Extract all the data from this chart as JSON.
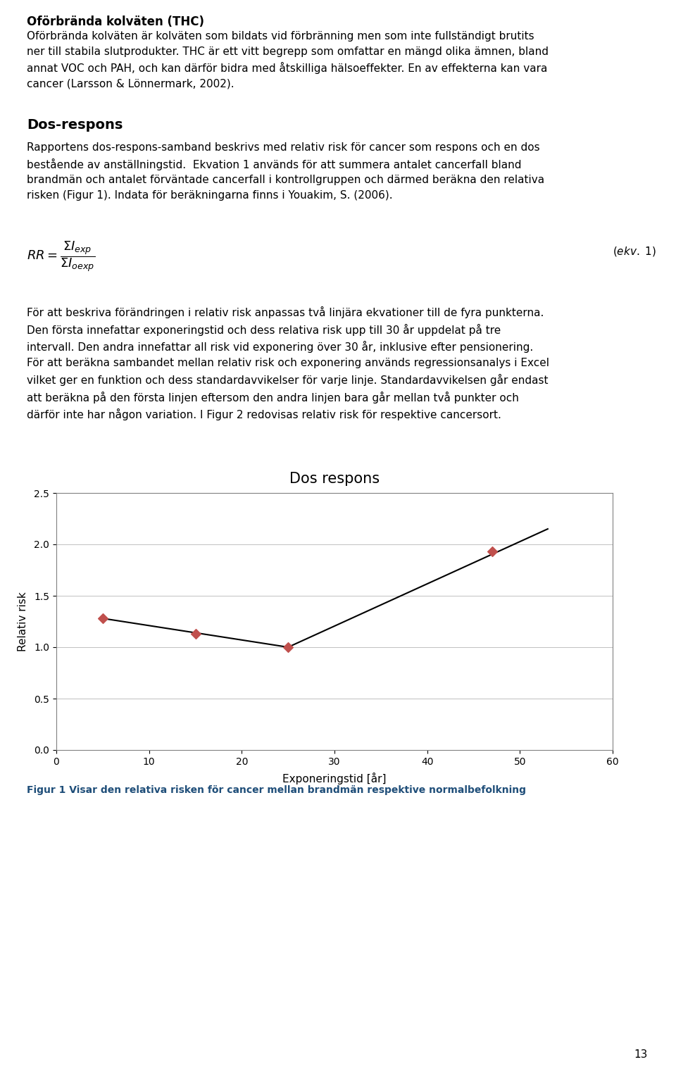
{
  "title": "Dos respons",
  "xlabel": "Exponeringstid [år]",
  "ylabel": "Relativ risk",
  "figcaption": "Figur 1 Visar den relativa risken för cancer mellan brandmän respektive normalbefolkning",
  "data_points": [
    [
      5,
      1.28
    ],
    [
      15,
      1.13
    ],
    [
      25,
      1.0
    ],
    [
      47,
      1.93
    ]
  ],
  "line_segment1": [
    [
      5,
      1.28
    ],
    [
      25,
      1.0
    ]
  ],
  "line_segment2": [
    [
      25,
      1.0
    ],
    [
      53,
      2.15
    ]
  ],
  "xlim": [
    0,
    60
  ],
  "ylim": [
    0,
    2.5
  ],
  "xticks": [
    0,
    10,
    20,
    30,
    40,
    50,
    60
  ],
  "yticks": [
    0,
    0.5,
    1.0,
    1.5,
    2.0,
    2.5
  ],
  "marker_color": "#c0504d",
  "line_color": "#000000",
  "marker_style": "D",
  "marker_size": 7,
  "grid_color": "#b0b0b0",
  "grid_alpha": 0.8,
  "title_fontsize": 15,
  "axis_label_fontsize": 11,
  "tick_fontsize": 10,
  "caption_color": "#1f4e79",
  "caption_fontsize": 10,
  "page_number": "13",
  "background_color": "#ffffff",
  "chart_bg": "#ffffff",
  "border_color": "#808080",
  "text_fontsize": 11,
  "heading1_fontsize": 12,
  "heading2_fontsize": 14
}
